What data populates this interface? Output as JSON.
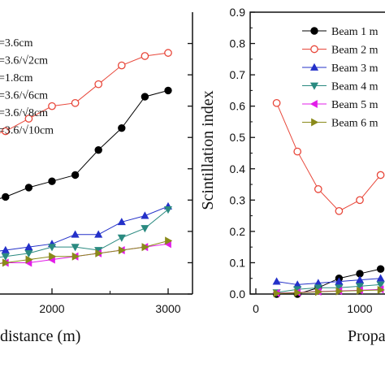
{
  "chart_data": [
    {
      "type": "line",
      "panel": "left",
      "xlabel": "distance (m)",
      "ylabel": "",
      "xticks": [
        "2000",
        "3000"
      ],
      "x": [
        1400,
        1600,
        1800,
        2000,
        2200,
        2400,
        2600,
        2800,
        3000
      ],
      "legend_position": "top-left",
      "series": [
        {
          "name": "=3.6cm",
          "marker": "filled-circle",
          "color": "#000000",
          "values": [
            0.29,
            0.31,
            0.34,
            0.36,
            0.38,
            0.46,
            0.53,
            0.63,
            0.65
          ]
        },
        {
          "name": "=3.6/√2cm",
          "marker": "open-circle",
          "color": "#e8473a",
          "values": [
            0.5,
            0.52,
            0.56,
            0.6,
            0.61,
            0.67,
            0.73,
            0.76,
            0.77
          ]
        },
        {
          "name": "=1.8cm",
          "marker": "up-triangle",
          "color": "#2431c9",
          "values": [
            0.13,
            0.14,
            0.15,
            0.16,
            0.19,
            0.19,
            0.23,
            0.25,
            0.28
          ]
        },
        {
          "name": "=3.6/√6cm",
          "marker": "down-triangle",
          "color": "#2a8a80",
          "values": [
            0.11,
            0.12,
            0.13,
            0.15,
            0.15,
            0.14,
            0.18,
            0.21,
            0.27
          ]
        },
        {
          "name": "=3.6/√8cm",
          "marker": "left-triangle",
          "color": "#e21ce8",
          "values": [
            0.09,
            0.1,
            0.1,
            0.11,
            0.12,
            0.13,
            0.14,
            0.15,
            0.16
          ]
        },
        {
          "name": "=3.6/√10cm",
          "marker": "right-triangle",
          "color": "#8a8a1a",
          "values": [
            0.09,
            0.1,
            0.11,
            0.12,
            0.12,
            0.13,
            0.14,
            0.15,
            0.17
          ]
        }
      ]
    },
    {
      "type": "line",
      "panel": "right",
      "xlabel": "Propa",
      "ylabel": "Scintillation index",
      "ylim": [
        0.0,
        0.9
      ],
      "yticks": [
        "0.0",
        "0.1",
        "0.2",
        "0.3",
        "0.4",
        "0.5",
        "0.6",
        "0.7",
        "0.8",
        "0.9"
      ],
      "xticks": [
        "0",
        "1000"
      ],
      "x": [
        200,
        400,
        600,
        800,
        1000,
        1200
      ],
      "legend_position": "top-right",
      "series": [
        {
          "name": "Beam 1 m",
          "marker": "filled-circle",
          "color": "#000000",
          "values": [
            0.0,
            0.0,
            0.02,
            0.05,
            0.065,
            0.08
          ]
        },
        {
          "name": "Beam 2 m",
          "marker": "open-circle",
          "color": "#e8473a",
          "values": [
            0.61,
            0.455,
            0.335,
            0.265,
            0.3,
            0.38
          ]
        },
        {
          "name": "Beam 3 m",
          "marker": "up-triangle",
          "color": "#2431c9",
          "values": [
            0.04,
            0.03,
            0.035,
            0.04,
            0.045,
            0.05
          ]
        },
        {
          "name": "Beam 4 m",
          "marker": "down-triangle",
          "color": "#2a8a80",
          "values": [
            0.005,
            0.015,
            0.02,
            0.02,
            0.025,
            0.03
          ]
        },
        {
          "name": "Beam 5 m",
          "marker": "left-triangle",
          "color": "#e21ce8",
          "values": [
            0.003,
            0.005,
            0.008,
            0.01,
            0.012,
            0.015
          ]
        },
        {
          "name": "Beam 6 m",
          "marker": "right-triangle",
          "color": "#8a8a1a",
          "values": [
            0.002,
            0.004,
            0.007,
            0.009,
            0.011,
            0.013
          ]
        }
      ]
    }
  ]
}
